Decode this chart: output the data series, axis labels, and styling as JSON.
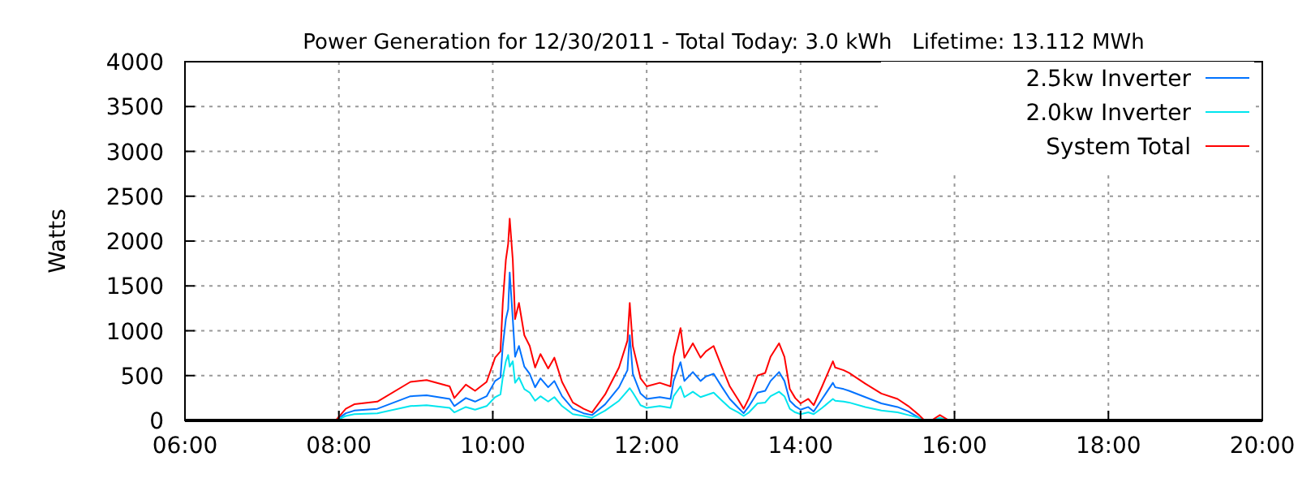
{
  "chart_data": {
    "type": "line",
    "title": "Power Generation for 12/30/2011 - Total Today: 3.0 kWh   Lifetime: 13.112 MWh",
    "ylabel": "Watts",
    "x": [
      7.96,
      8.09,
      8.2,
      8.5,
      8.93,
      9.14,
      9.44,
      9.5,
      9.65,
      9.77,
      9.92,
      10.03,
      10.1,
      10.13,
      10.17,
      10.2,
      10.22,
      10.26,
      10.29,
      10.34,
      10.41,
      10.48,
      10.55,
      10.62,
      10.72,
      10.8,
      10.9,
      11.04,
      11.18,
      11.29,
      11.46,
      11.64,
      11.75,
      11.78,
      11.82,
      11.92,
      12.0,
      12.17,
      12.31,
      12.35,
      12.44,
      12.49,
      12.6,
      12.7,
      12.77,
      12.87,
      12.98,
      13.08,
      13.19,
      13.26,
      13.33,
      13.44,
      13.54,
      13.61,
      13.72,
      13.79,
      13.86,
      13.93,
      14.0,
      14.1,
      14.17,
      14.28,
      14.42,
      14.45,
      14.56,
      14.63,
      14.84,
      15.05,
      15.26,
      15.4,
      15.54,
      15.61,
      15.7,
      15.81,
      15.93
    ],
    "series": [
      {
        "name": "2.5kw Inverter",
        "color": "#0072ff",
        "values": [
          0,
          80,
          110,
          130,
          270,
          280,
          240,
          160,
          250,
          210,
          270,
          440,
          480,
          830,
          1130,
          1240,
          1650,
          1130,
          710,
          830,
          600,
          520,
          370,
          470,
          370,
          440,
          270,
          130,
          80,
          60,
          180,
          370,
          560,
          950,
          520,
          300,
          240,
          260,
          240,
          440,
          650,
          440,
          540,
          440,
          490,
          520,
          370,
          240,
          140,
          80,
          160,
          310,
          330,
          440,
          540,
          440,
          220,
          160,
          120,
          150,
          100,
          240,
          420,
          370,
          350,
          330,
          260,
          190,
          150,
          100,
          30,
          0,
          0,
          null,
          null
        ]
      },
      {
        "name": "2.0kw Inverter",
        "color": "#00e5ee",
        "values": [
          0,
          50,
          70,
          80,
          160,
          170,
          140,
          90,
          150,
          120,
          160,
          260,
          290,
          480,
          660,
          730,
          600,
          660,
          420,
          480,
          350,
          310,
          220,
          270,
          210,
          260,
          160,
          70,
          50,
          30,
          110,
          220,
          330,
          360,
          310,
          170,
          140,
          160,
          140,
          270,
          380,
          260,
          320,
          260,
          280,
          310,
          220,
          140,
          90,
          50,
          90,
          190,
          200,
          270,
          320,
          270,
          130,
          90,
          70,
          90,
          70,
          140,
          240,
          220,
          210,
          200,
          150,
          110,
          90,
          60,
          30,
          0,
          0,
          30,
          0
        ]
      },
      {
        "name": "System Total",
        "color": "#ff0000",
        "values": [
          0,
          130,
          180,
          210,
          430,
          450,
          380,
          250,
          400,
          330,
          430,
          700,
          770,
          1310,
          1790,
          1970,
          2250,
          1790,
          1130,
          1310,
          950,
          830,
          590,
          740,
          580,
          700,
          430,
          200,
          130,
          90,
          290,
          590,
          890,
          1310,
          830,
          470,
          380,
          420,
          380,
          710,
          1030,
          700,
          860,
          700,
          770,
          830,
          590,
          380,
          230,
          130,
          250,
          500,
          530,
          710,
          860,
          710,
          350,
          250,
          190,
          240,
          170,
          380,
          660,
          590,
          560,
          530,
          410,
          300,
          240,
          160,
          60,
          0,
          0,
          60,
          0
        ]
      }
    ],
    "xlim": [
      6,
      20
    ],
    "xticks": [
      {
        "value": 6,
        "label": "06:00"
      },
      {
        "value": 8,
        "label": "08:00"
      },
      {
        "value": 10,
        "label": "10:00"
      },
      {
        "value": 12,
        "label": "12:00"
      },
      {
        "value": 14,
        "label": "14:00"
      },
      {
        "value": 16,
        "label": "16:00"
      },
      {
        "value": 18,
        "label": "18:00"
      },
      {
        "value": 20,
        "label": "20:00"
      }
    ],
    "ylim": [
      0,
      4000
    ],
    "yticks": [
      0,
      500,
      1000,
      1500,
      2000,
      2500,
      3000,
      3500,
      4000
    ],
    "grid": true,
    "legend": "top right",
    "line_style": "solid",
    "marker": "none"
  }
}
